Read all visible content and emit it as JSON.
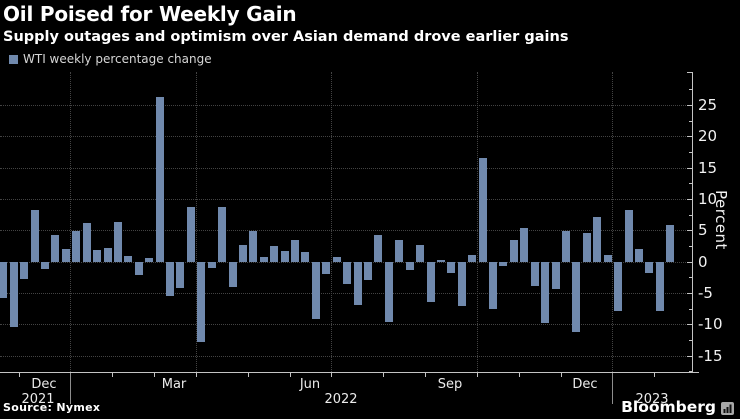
{
  "header": {
    "title": "Oil Poised for Weekly Gain",
    "subtitle": "Supply outages and optimism over Asian demand drove earlier gains"
  },
  "legend": {
    "label": "WTI weekly percentage change"
  },
  "footer": {
    "source": "Source: Nymex",
    "brand": "Bloomberg"
  },
  "chart_data": {
    "type": "bar",
    "title": "WTI weekly percentage change",
    "frequency": "weekly",
    "ylabel": "Percent",
    "ylim": [
      -17.8,
      30.2
    ],
    "yticks": [
      -15,
      -10,
      -5,
      0,
      5,
      10,
      15,
      20,
      25
    ],
    "grid": "dotted horizontal at each labeled tick, dotted vertical at quarter starts",
    "legend_position": "top-left",
    "bar_color": "#7089ad",
    "grid_color": "#434343",
    "axis_color": "#c4c4c4",
    "week_ending": [
      "2021-11-19",
      "2021-11-26",
      "2021-12-03",
      "2021-12-10",
      "2021-12-17",
      "2021-12-24",
      "2021-12-31",
      "2022-01-07",
      "2022-01-14",
      "2022-01-21",
      "2022-01-28",
      "2022-02-04",
      "2022-02-11",
      "2022-02-18",
      "2022-02-25",
      "2022-03-04",
      "2022-03-11",
      "2022-03-18",
      "2022-03-25",
      "2022-04-01",
      "2022-04-08",
      "2022-04-15",
      "2022-04-22",
      "2022-04-29",
      "2022-05-06",
      "2022-05-13",
      "2022-05-20",
      "2022-05-27",
      "2022-06-03",
      "2022-06-10",
      "2022-06-17",
      "2022-06-24",
      "2022-07-01",
      "2022-07-08",
      "2022-07-15",
      "2022-07-22",
      "2022-07-29",
      "2022-08-05",
      "2022-08-12",
      "2022-08-19",
      "2022-08-26",
      "2022-09-02",
      "2022-09-09",
      "2022-09-16",
      "2022-09-23",
      "2022-09-30",
      "2022-10-07",
      "2022-10-14",
      "2022-10-21",
      "2022-10-28",
      "2022-11-04",
      "2022-11-11",
      "2022-11-18",
      "2022-11-25",
      "2022-12-02",
      "2022-12-09",
      "2022-12-16",
      "2022-12-23",
      "2022-12-30",
      "2023-01-06",
      "2023-01-13",
      "2023-01-20",
      "2023-01-27",
      "2023-02-03",
      "2023-02-10"
    ],
    "values": [
      -5.8,
      -10.4,
      -2.8,
      8.2,
      -1.1,
      4.3,
      2.0,
      4.9,
      6.2,
      1.8,
      2.2,
      6.3,
      0.9,
      -2.2,
      0.6,
      26.3,
      -5.5,
      -4.2,
      8.8,
      -12.8,
      -1.0,
      8.8,
      -4.1,
      2.6,
      4.9,
      0.7,
      2.5,
      1.7,
      3.4,
      1.5,
      -9.2,
      -1.9,
      0.8,
      -3.5,
      -6.9,
      -3.0,
      4.2,
      -9.6,
      3.5,
      -1.4,
      2.6,
      -6.5,
      0.3,
      -1.8,
      -7.1,
      1.0,
      16.5,
      -7.6,
      -0.7,
      3.4,
      5.4,
      -3.8,
      -9.8,
      -4.4,
      4.9,
      -11.2,
      4.6,
      7.1,
      1.1,
      -7.9,
      8.3,
      2.0,
      -1.8,
      -7.8,
      5.8
    ],
    "x_axis": {
      "month_labels": [
        {
          "text": "Dec",
          "x": 44
        },
        {
          "text": "Mar",
          "x": 174
        },
        {
          "text": "Jun",
          "x": 310
        },
        {
          "text": "Sep",
          "x": 450
        },
        {
          "text": "Dec",
          "x": 585
        }
      ],
      "year_labels": [
        {
          "text": "2021",
          "x": 38
        },
        {
          "text": "2022",
          "x": 341
        },
        {
          "text": "2023",
          "x": 652
        }
      ],
      "month_ticks_x": [
        19,
        70,
        112,
        154,
        196,
        248,
        290,
        331,
        383,
        425,
        477,
        519,
        561,
        612,
        654
      ],
      "quarter_gridlines_x": [
        70,
        196,
        331,
        477,
        612
      ],
      "year_separators_x": [
        70,
        612
      ]
    }
  }
}
